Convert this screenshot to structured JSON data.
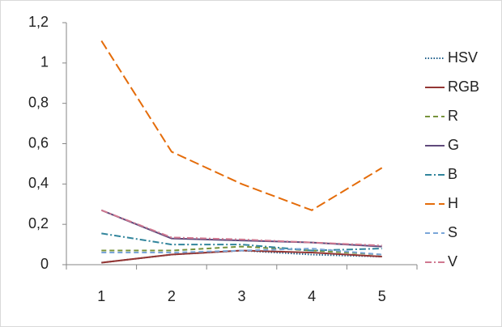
{
  "chart_data": {
    "type": "line",
    "categories": [
      "1",
      "2",
      "3",
      "4",
      "5"
    ],
    "series": [
      {
        "name": "HSV",
        "color": "#1f5f8b",
        "line_style": "dotted",
        "values": [
          0.01,
          0.05,
          0.07,
          0.05,
          0.04
        ]
      },
      {
        "name": "RGB",
        "color": "#943634",
        "line_style": "solid",
        "values": [
          0.01,
          0.05,
          0.07,
          0.06,
          0.04
        ]
      },
      {
        "name": "R",
        "color": "#77933c",
        "line_style": "dashed",
        "values": [
          0.07,
          0.07,
          0.09,
          0.07,
          0.05
        ]
      },
      {
        "name": "G",
        "color": "#604a7b",
        "line_style": "solid",
        "values": [
          0.27,
          0.13,
          0.12,
          0.11,
          0.09
        ]
      },
      {
        "name": "B",
        "color": "#31859c",
        "line_style": "dash-dot",
        "values": [
          0.155,
          0.1,
          0.1,
          0.07,
          0.08
        ]
      },
      {
        "name": "H",
        "color": "#e46c0a",
        "line_style": "long-dash",
        "values": [
          1.11,
          0.56,
          0.4,
          0.27,
          0.48
        ]
      },
      {
        "name": "S",
        "color": "#7aa6d8",
        "line_style": "dashed",
        "values": [
          0.06,
          0.06,
          0.07,
          0.08,
          0.05
        ]
      },
      {
        "name": "V",
        "color": "#d07890",
        "line_style": "dash-dot",
        "values": [
          0.27,
          0.135,
          0.125,
          0.11,
          0.095
        ]
      }
    ],
    "ylim": [
      0,
      1.2
    ],
    "yticks": [
      0,
      {
        "value": 0.2,
        "label": "0,2"
      },
      {
        "value": 0.4,
        "label": "0,4"
      },
      {
        "value": 0.6,
        "label": "0,6"
      },
      {
        "value": 0.8,
        "label": "0,8"
      },
      1,
      {
        "value": 1.2,
        "label": "1,2"
      }
    ],
    "grid": false,
    "legend": "right"
  }
}
